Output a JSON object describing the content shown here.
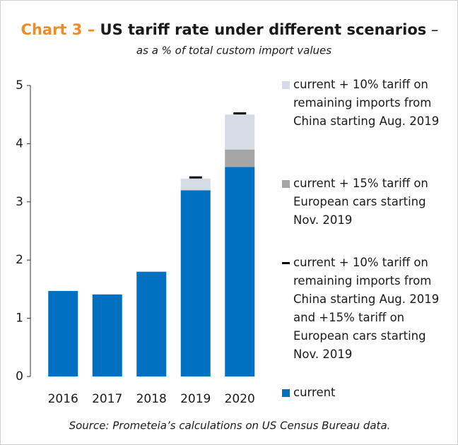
{
  "chart_data": {
    "type": "stacked-bar",
    "title_prefix": "Chart 3 – ",
    "title": "US tariff rate under different scenarios",
    "title_suffix": " –",
    "subtitle": "as a % of total custom import values",
    "source": "Source: Prometeia’s calculations on US Census Bureau data.",
    "categories": [
      "2016",
      "2017",
      "2018",
      "2019",
      "2020"
    ],
    "series": [
      {
        "name": "current",
        "color": "#0070c0",
        "values": [
          1.47,
          1.41,
          1.8,
          3.2,
          3.6
        ]
      },
      {
        "name": "current + 15% tariff on European cars starting Nov. 2019",
        "color": "#a6a6a6",
        "values": [
          null,
          null,
          null,
          null,
          0.3
        ]
      },
      {
        "name": "current + 10% tariff on remaining imports from China starting Aug. 2019",
        "color": "#d6dce5",
        "values": [
          null,
          null,
          null,
          0.2,
          0.6
        ]
      }
    ],
    "markers": {
      "name": "current + 10% tariff on remaining imports from China starting Aug. 2019 and +15% tariff on European cars starting Nov. 2019",
      "color": "#000000",
      "values": [
        null,
        null,
        null,
        3.42,
        4.52
      ]
    },
    "ylim": [
      0,
      5
    ],
    "yticks": [
      0,
      1,
      2,
      3,
      4,
      5
    ],
    "grid": false
  }
}
